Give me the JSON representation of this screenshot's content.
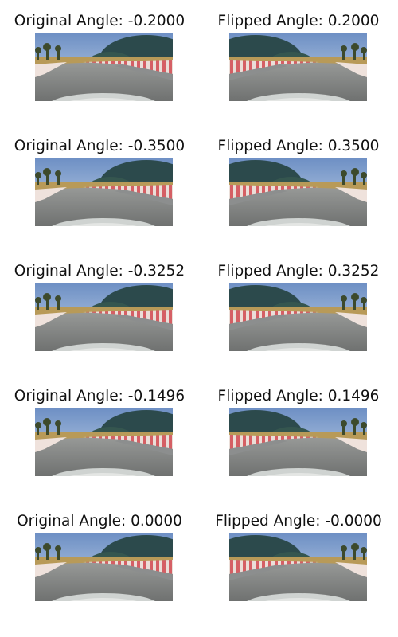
{
  "panels": [
    {
      "original": {
        "title": "Original Angle: -0.2000",
        "angle": -0.2
      },
      "flipped": {
        "title": "Flipped Angle: 0.2000",
        "angle": 0.2
      }
    },
    {
      "original": {
        "title": "Original Angle: -0.3500",
        "angle": -0.35
      },
      "flipped": {
        "title": "Flipped Angle: 0.3500",
        "angle": 0.35
      }
    },
    {
      "original": {
        "title": "Original Angle: -0.3252",
        "angle": -0.3252
      },
      "flipped": {
        "title": "Flipped Angle: 0.3252",
        "angle": 0.3252
      }
    },
    {
      "original": {
        "title": "Original Angle: -0.1496",
        "angle": -0.1496
      },
      "flipped": {
        "title": "Flipped Angle: 0.1496",
        "angle": 0.1496
      }
    },
    {
      "original": {
        "title": "Original Angle: 0.0000",
        "angle": 0.0
      },
      "flipped": {
        "title": "Flipped Angle: -0.0000",
        "angle": -0.0
      }
    }
  ],
  "colors": {
    "sky": "#8fb0d8",
    "hill": "#2c4a4c",
    "grass": "#b89a58",
    "road": "#7f8181",
    "curb_red": "#d85c62",
    "curb_white": "#efe2dc",
    "hood": "#cfd3d1"
  }
}
